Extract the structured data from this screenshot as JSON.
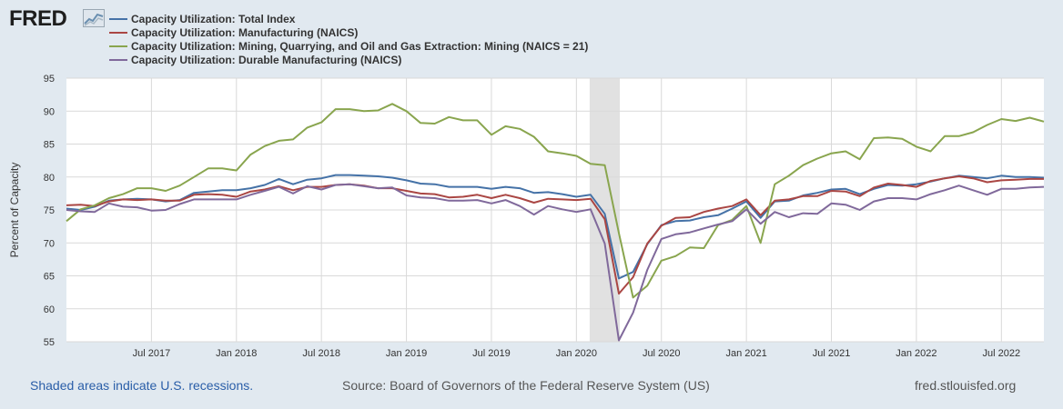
{
  "header": {
    "logo_text": "FRED",
    "logo_icon": "line-chart-icon"
  },
  "footer": {
    "recession_note": "Shaded areas indicate U.S. recessions.",
    "source": "Source: Board of Governors of the Federal Reserve System (US)",
    "site": "fred.stlouisfed.org"
  },
  "chart_data": {
    "type": "line",
    "title": "",
    "xlabel": "",
    "ylabel": "Percent of Capacity",
    "ylim": [
      55,
      95
    ],
    "yticks": [
      55,
      60,
      65,
      70,
      75,
      80,
      85,
      90,
      95
    ],
    "x_start": "2017-01",
    "x_end": "2022-09",
    "xticks": [
      {
        "label": "Jul 2017",
        "t": 6
      },
      {
        "label": "Jan 2018",
        "t": 12
      },
      {
        "label": "Jul 2018",
        "t": 18
      },
      {
        "label": "Jan 2019",
        "t": 24
      },
      {
        "label": "Jul 2019",
        "t": 30
      },
      {
        "label": "Jan 2020",
        "t": 36
      },
      {
        "label": "Jul 2020",
        "t": 42
      },
      {
        "label": "Jan 2021",
        "t": 48
      },
      {
        "label": "Jul 2021",
        "t": 54
      },
      {
        "label": "Jan 2022",
        "t": 60
      },
      {
        "label": "Jul 2022",
        "t": 66
      }
    ],
    "recessions": [
      {
        "start": 37,
        "end": 39
      }
    ],
    "grid": true,
    "series": [
      {
        "name": "Capacity Utilization: Total Index",
        "color": "#4572a7",
        "values": [
          75.2,
          75.0,
          75.5,
          76.4,
          76.6,
          76.7,
          76.6,
          76.3,
          76.5,
          77.6,
          77.8,
          78.0,
          78.0,
          78.3,
          78.8,
          79.7,
          78.9,
          79.6,
          79.8,
          80.3,
          80.3,
          80.2,
          80.1,
          79.9,
          79.5,
          79.0,
          78.9,
          78.5,
          78.5,
          78.5,
          78.2,
          78.5,
          78.3,
          77.6,
          77.7,
          77.4,
          77.0,
          77.3,
          74.4,
          64.6,
          65.6,
          69.8,
          72.7,
          73.3,
          73.4,
          73.9,
          74.2,
          75.2,
          76.3,
          73.8,
          76.3,
          76.4,
          77.2,
          77.6,
          78.1,
          78.2,
          77.4,
          78.2,
          78.8,
          78.7,
          78.9,
          79.3,
          79.8,
          80.2,
          80.0,
          79.8,
          80.2,
          80.0,
          80.0,
          79.9
        ]
      },
      {
        "name": "Capacity Utilization: Manufacturing (NAICS)",
        "color": "#aa4643",
        "values": [
          75.7,
          75.8,
          75.6,
          76.3,
          76.6,
          76.5,
          76.6,
          76.4,
          76.4,
          77.3,
          77.4,
          77.3,
          77.0,
          77.8,
          78.1,
          78.6,
          78.0,
          78.5,
          78.5,
          78.8,
          78.9,
          78.7,
          78.3,
          78.3,
          77.9,
          77.5,
          77.4,
          76.9,
          77.0,
          77.3,
          76.8,
          77.3,
          76.8,
          76.1,
          76.7,
          76.6,
          76.5,
          76.7,
          73.6,
          62.3,
          64.8,
          69.9,
          72.6,
          73.8,
          73.9,
          74.7,
          75.2,
          75.6,
          76.6,
          74.2,
          76.4,
          76.6,
          77.1,
          77.1,
          77.9,
          77.8,
          77.1,
          78.4,
          79.0,
          78.8,
          78.5,
          79.4,
          79.8,
          80.1,
          79.8,
          79.2,
          79.5,
          79.6,
          79.7,
          79.7
        ]
      },
      {
        "name": "Capacity Utilization: Mining, Quarrying, and Oil and Gas Extraction: Mining (NAICS = 21)",
        "color": "#89a54e",
        "values": [
          73.3,
          75.1,
          75.7,
          76.8,
          77.4,
          78.3,
          78.3,
          77.9,
          78.7,
          80.0,
          81.3,
          81.3,
          81.0,
          83.4,
          84.7,
          85.5,
          85.7,
          87.5,
          88.3,
          90.3,
          90.3,
          90.0,
          90.1,
          91.1,
          90.0,
          88.2,
          88.1,
          89.1,
          88.6,
          88.6,
          86.4,
          87.7,
          87.3,
          86.1,
          83.9,
          83.6,
          83.2,
          82.0,
          81.8,
          71.5,
          61.7,
          63.5,
          67.3,
          68.0,
          69.3,
          69.2,
          72.7,
          73.5,
          75.6,
          70.0,
          78.9,
          80.2,
          81.8,
          82.8,
          83.6,
          83.9,
          82.7,
          85.9,
          86.0,
          85.8,
          84.6,
          83.9,
          86.2,
          86.2,
          86.8,
          87.9,
          88.8,
          88.5,
          89.0,
          88.4
        ]
      },
      {
        "name": "Capacity Utilization: Durable Manufacturing (NAICS)",
        "color": "#80699b",
        "values": [
          75.0,
          74.8,
          74.7,
          76.0,
          75.5,
          75.4,
          74.9,
          75.0,
          75.9,
          76.6,
          76.6,
          76.6,
          76.6,
          77.3,
          77.9,
          78.5,
          77.5,
          78.6,
          78.1,
          78.8,
          78.9,
          78.6,
          78.3,
          78.4,
          77.2,
          76.9,
          76.8,
          76.4,
          76.4,
          76.5,
          76.0,
          76.5,
          75.6,
          74.3,
          75.6,
          75.1,
          74.7,
          75.1,
          69.9,
          55.2,
          59.4,
          65.9,
          70.6,
          71.3,
          71.6,
          72.2,
          72.8,
          73.3,
          75.1,
          72.9,
          74.7,
          73.9,
          74.5,
          74.4,
          76.0,
          75.8,
          75.0,
          76.3,
          76.8,
          76.8,
          76.6,
          77.4,
          78.0,
          78.7,
          78.0,
          77.3,
          78.2,
          78.2,
          78.4,
          78.5
        ]
      }
    ]
  }
}
